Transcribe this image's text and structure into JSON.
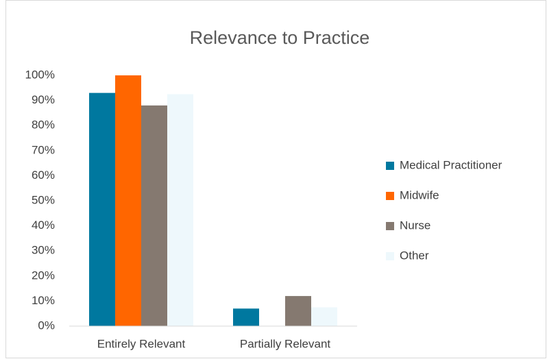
{
  "chart_data": {
    "type": "bar",
    "title": "Relevance to Practice",
    "categories": [
      "Entirely Relevant",
      "Partially Relevant"
    ],
    "series": [
      {
        "name": "Medical Practitioner",
        "color": "#00789f",
        "values": [
          93,
          7
        ]
      },
      {
        "name": "Midwife",
        "color": "#ff6600",
        "values": [
          100,
          0
        ]
      },
      {
        "name": "Nurse",
        "color": "#857970",
        "values": [
          88,
          12
        ]
      },
      {
        "name": "Other",
        "color": "#eef8fc",
        "values": [
          92.5,
          7.5
        ]
      }
    ],
    "ylim": [
      0,
      100
    ],
    "yticks": [
      {
        "value": 0,
        "label": "0%"
      },
      {
        "value": 10,
        "label": "10%"
      },
      {
        "value": 20,
        "label": "20%"
      },
      {
        "value": 30,
        "label": "30%"
      },
      {
        "value": 40,
        "label": "40%"
      },
      {
        "value": 50,
        "label": "50%"
      },
      {
        "value": 60,
        "label": "60%"
      },
      {
        "value": 70,
        "label": "70%"
      },
      {
        "value": 80,
        "label": "80%"
      },
      {
        "value": 90,
        "label": "90%"
      },
      {
        "value": 100,
        "label": "100%"
      }
    ],
    "grid": false,
    "legend": "right"
  }
}
